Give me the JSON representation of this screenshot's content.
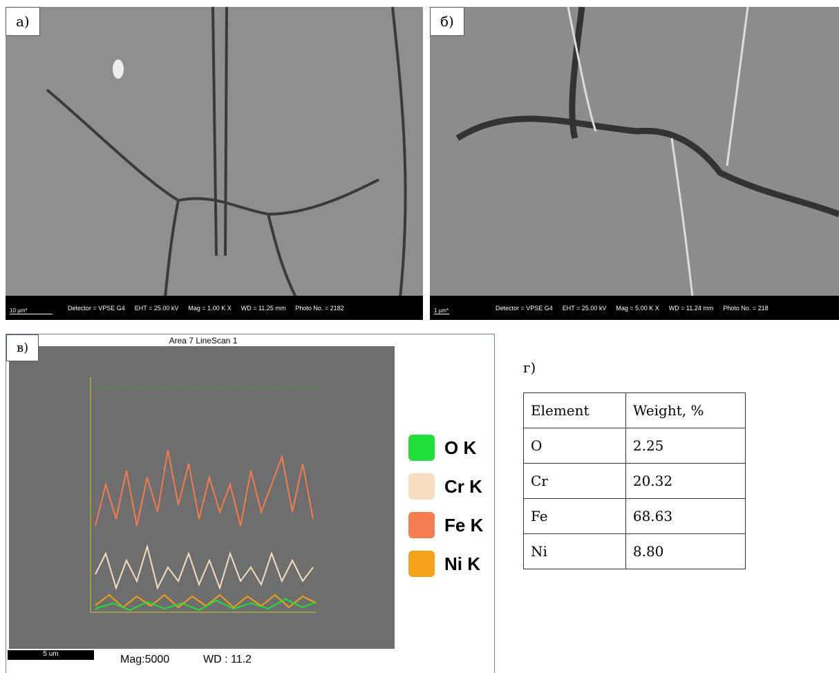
{
  "panels": {
    "a": {
      "label": "а)",
      "scale": "10 µm*",
      "info": [
        "Detector = VPSE G4",
        "EHT = 25.00 kV",
        "Mag =   1.00 K X",
        "WD = 11.25 mm",
        "Photo No. = 2182"
      ]
    },
    "b": {
      "label": "б)",
      "scale": "1 µm*",
      "info": [
        "Detector = VPSE G4",
        "EHT = 25.00 kV",
        "Mag =   5.00 K X",
        "WD = 11.24 mm",
        "Photo No. = 218"
      ]
    },
    "c": {
      "label": "в)",
      "title": "Area 7 LineScan 1",
      "scale": "5 um",
      "mag": "Mag:5000",
      "wd": "WD : 11.2",
      "legend": [
        {
          "name": "O K",
          "color": "#22e03a"
        },
        {
          "name": "Cr K",
          "color": "#f8dcc0"
        },
        {
          "name": "Fe K",
          "color": "#f57c4e"
        },
        {
          "name": "Ni K",
          "color": "#f7a21b"
        }
      ]
    },
    "d": {
      "label": "г)",
      "table": {
        "header": [
          "Element",
          "Weight, %"
        ],
        "rows": [
          [
            "O",
            "2.25"
          ],
          [
            "Cr",
            "20.32"
          ],
          [
            "Fe",
            "68.63"
          ],
          [
            "Ni",
            "8.80"
          ]
        ]
      }
    }
  }
}
